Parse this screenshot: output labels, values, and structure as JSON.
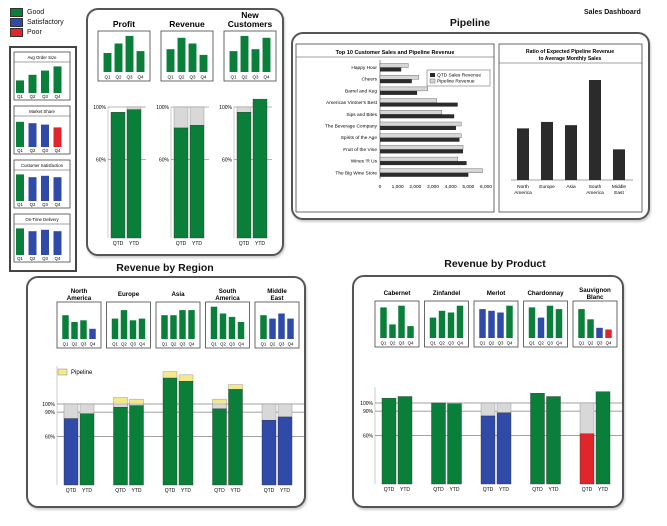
{
  "dashboard_title": "Sales Dashboard",
  "legend": [
    {
      "label": "Good",
      "color": "#0a7f3a"
    },
    {
      "label": "Satisfactory",
      "color": "#2f4aa8"
    },
    {
      "label": "Poor",
      "color": "#e0262b"
    }
  ],
  "colors": {
    "good": "#0a7f3a",
    "satisfactory": "#2f4aa8",
    "poor": "#e0262b",
    "pipeline": "#f2e98a",
    "target": "#d8d8d8",
    "dark": "#2b2b2b"
  },
  "quarters_label": [
    "Q1",
    "Q2",
    "Q3",
    "Q4"
  ],
  "period_labels": [
    "QTD",
    "YTD"
  ],
  "pipeline_label": "Pipeline",
  "chart_data": {
    "left_metrics": [
      {
        "title": "Avg Order Size",
        "values": [
          0.45,
          0.65,
          0.8,
          0.95
        ],
        "status": [
          "good",
          "good",
          "good",
          "good"
        ]
      },
      {
        "title": "Market Share",
        "values": [
          0.9,
          0.85,
          0.8,
          0.7
        ],
        "status": [
          "good",
          "satisfactory",
          "satisfactory",
          "poor"
        ]
      },
      {
        "title": "Customer Satisfaction",
        "values": [
          0.95,
          0.85,
          0.9,
          0.85
        ],
        "status": [
          "good",
          "satisfactory",
          "satisfactory",
          "satisfactory"
        ]
      },
      {
        "title": "On-Time Delivery",
        "values": [
          0.95,
          0.85,
          0.9,
          0.85
        ],
        "status": [
          "good",
          "satisfactory",
          "satisfactory",
          "satisfactory"
        ]
      }
    ],
    "top_metrics": [
      {
        "title": "Profit",
        "spark": [
          0.5,
          0.75,
          0.95,
          0.55
        ],
        "qtd": 96,
        "ytd": 98,
        "qtd_target": 92,
        "ytd_target": 100
      },
      {
        "title": "Revenue",
        "spark": [
          0.6,
          0.9,
          0.75,
          0.45
        ],
        "qtd": 84,
        "ytd": 86,
        "qtd_target": 100,
        "ytd_target": 100
      },
      {
        "title": "New Customers",
        "spark": [
          0.55,
          0.95,
          0.6,
          0.9
        ],
        "qtd": 96,
        "ytd": 106,
        "qtd_target": 100,
        "ytd_target": 100
      }
    ],
    "pipeline_title": "Pipeline",
    "hbar": {
      "title": "Top 10 Customer Sales and Pipeline Revenue",
      "categories": [
        "Happy Hour",
        "Cheers",
        "Barrel and Keg",
        "American Vintner's Best",
        "Sips and Bites",
        "The Beverage Company",
        "Spirits of the Age",
        "Fruit of the Vine",
        "Wines 'R Us",
        "The Big Wine Store"
      ],
      "series": [
        {
          "name": "QTD Sales Revenue",
          "values": [
            1200,
            1800,
            2100,
            4400,
            4200,
            4300,
            4500,
            4700,
            4900,
            5000
          ]
        },
        {
          "name": "Pipeline Revenue",
          "values": [
            1600,
            2200,
            2700,
            3200,
            3500,
            4600,
            4600,
            4700,
            4400,
            5800
          ]
        }
      ],
      "xticks": [
        0,
        1000,
        2000,
        3000,
        4000,
        5000,
        6000
      ],
      "xtick_labels": [
        "0",
        "1,000",
        "2,000",
        "3,000",
        "4,000",
        "5,000",
        "6,000"
      ],
      "xlim": [
        0,
        6000
      ]
    },
    "ratio": {
      "title": "Ratio of Expected Pipeline Revenue",
      "title2": "to Average Monthly Sales",
      "categories": [
        "North America",
        "Europe",
        "Asia",
        "South America",
        "Middle East"
      ],
      "values": [
        0.32,
        0.36,
        0.34,
        0.62,
        0.19
      ]
    },
    "region_title": "Revenue by Region",
    "regions": [
      {
        "name": "North America",
        "spark": [
          0.7,
          0.5,
          0.55,
          0.3
        ],
        "spark_status": [
          "good",
          "good",
          "good",
          "satisfactory"
        ],
        "qtd": 82,
        "ytd": 88,
        "qtd_pipe": 92,
        "ytd_pipe": 90,
        "qtd_color": "satisfactory",
        "ytd_color": "good"
      },
      {
        "name": "Europe",
        "spark": [
          0.6,
          0.85,
          0.55,
          0.6
        ],
        "spark_status": [
          "good",
          "good",
          "good",
          "good"
        ],
        "qtd": 96,
        "ytd": 98,
        "qtd_pipe": 108,
        "ytd_pipe": 106,
        "qtd_color": "good",
        "ytd_color": "good"
      },
      {
        "name": "Asia",
        "spark": [
          0.7,
          0.7,
          0.85,
          0.85
        ],
        "spark_status": [
          "good",
          "good",
          "good",
          "good"
        ],
        "qtd": 132,
        "ytd": 128,
        "qtd_pipe": 140,
        "ytd_pipe": 136,
        "qtd_color": "good",
        "ytd_color": "good"
      },
      {
        "name": "South America",
        "spark": [
          0.95,
          0.75,
          0.65,
          0.5
        ],
        "spark_status": [
          "good",
          "good",
          "good",
          "good"
        ],
        "qtd": 94,
        "ytd": 118,
        "qtd_pipe": 106,
        "ytd_pipe": 124,
        "qtd_color": "good",
        "ytd_color": "good"
      },
      {
        "name": "Middle East",
        "spark": [
          0.7,
          0.6,
          0.75,
          0.6
        ],
        "spark_status": [
          "good",
          "satisfactory",
          "satisfactory",
          "satisfactory"
        ],
        "qtd": 80,
        "ytd": 84,
        "qtd_pipe": 80,
        "ytd_pipe": 84,
        "qtd_color": "satisfactory",
        "ytd_color": "satisfactory"
      }
    ],
    "product_title": "Revenue by Product",
    "products": [
      {
        "name": "Cabernet",
        "spark": [
          0.9,
          0.4,
          0.95,
          0.35
        ],
        "spark_status": [
          "good",
          "good",
          "good",
          "good"
        ],
        "qtd": 106,
        "ytd": 108,
        "qtd_color": "good",
        "ytd_color": "good"
      },
      {
        "name": "Zinfandel",
        "spark": [
          0.6,
          0.8,
          0.75,
          0.95
        ],
        "spark_status": [
          "good",
          "good",
          "good",
          "good"
        ],
        "qtd": 100,
        "ytd": 99,
        "qtd_color": "good",
        "ytd_color": "good"
      },
      {
        "name": "Merlot",
        "spark": [
          0.85,
          0.8,
          0.75,
          0.95
        ],
        "spark_status": [
          "satisfactory",
          "satisfactory",
          "satisfactory",
          "good"
        ],
        "qtd": 84,
        "ytd": 88,
        "qtd_color": "satisfactory",
        "ytd_color": "satisfactory"
      },
      {
        "name": "Chardonnay",
        "spark": [
          0.9,
          0.6,
          0.95,
          0.85
        ],
        "spark_status": [
          "good",
          "satisfactory",
          "good",
          "good"
        ],
        "qtd": 112,
        "ytd": 108,
        "qtd_color": "good",
        "ytd_color": "good"
      },
      {
        "name": "Sauvignon Blanc",
        "spark": [
          0.85,
          0.55,
          0.3,
          0.25
        ],
        "spark_status": [
          "good",
          "good",
          "satisfactory",
          "poor"
        ],
        "qtd": 62,
        "ytd": 114,
        "qtd_color": "poor",
        "ytd_color": "good"
      }
    ],
    "pct_ticks": [
      {
        "label": "100%",
        "value": 100
      },
      {
        "label": "90%",
        "value": 90
      },
      {
        "label": "60%",
        "value": 60
      }
    ]
  }
}
